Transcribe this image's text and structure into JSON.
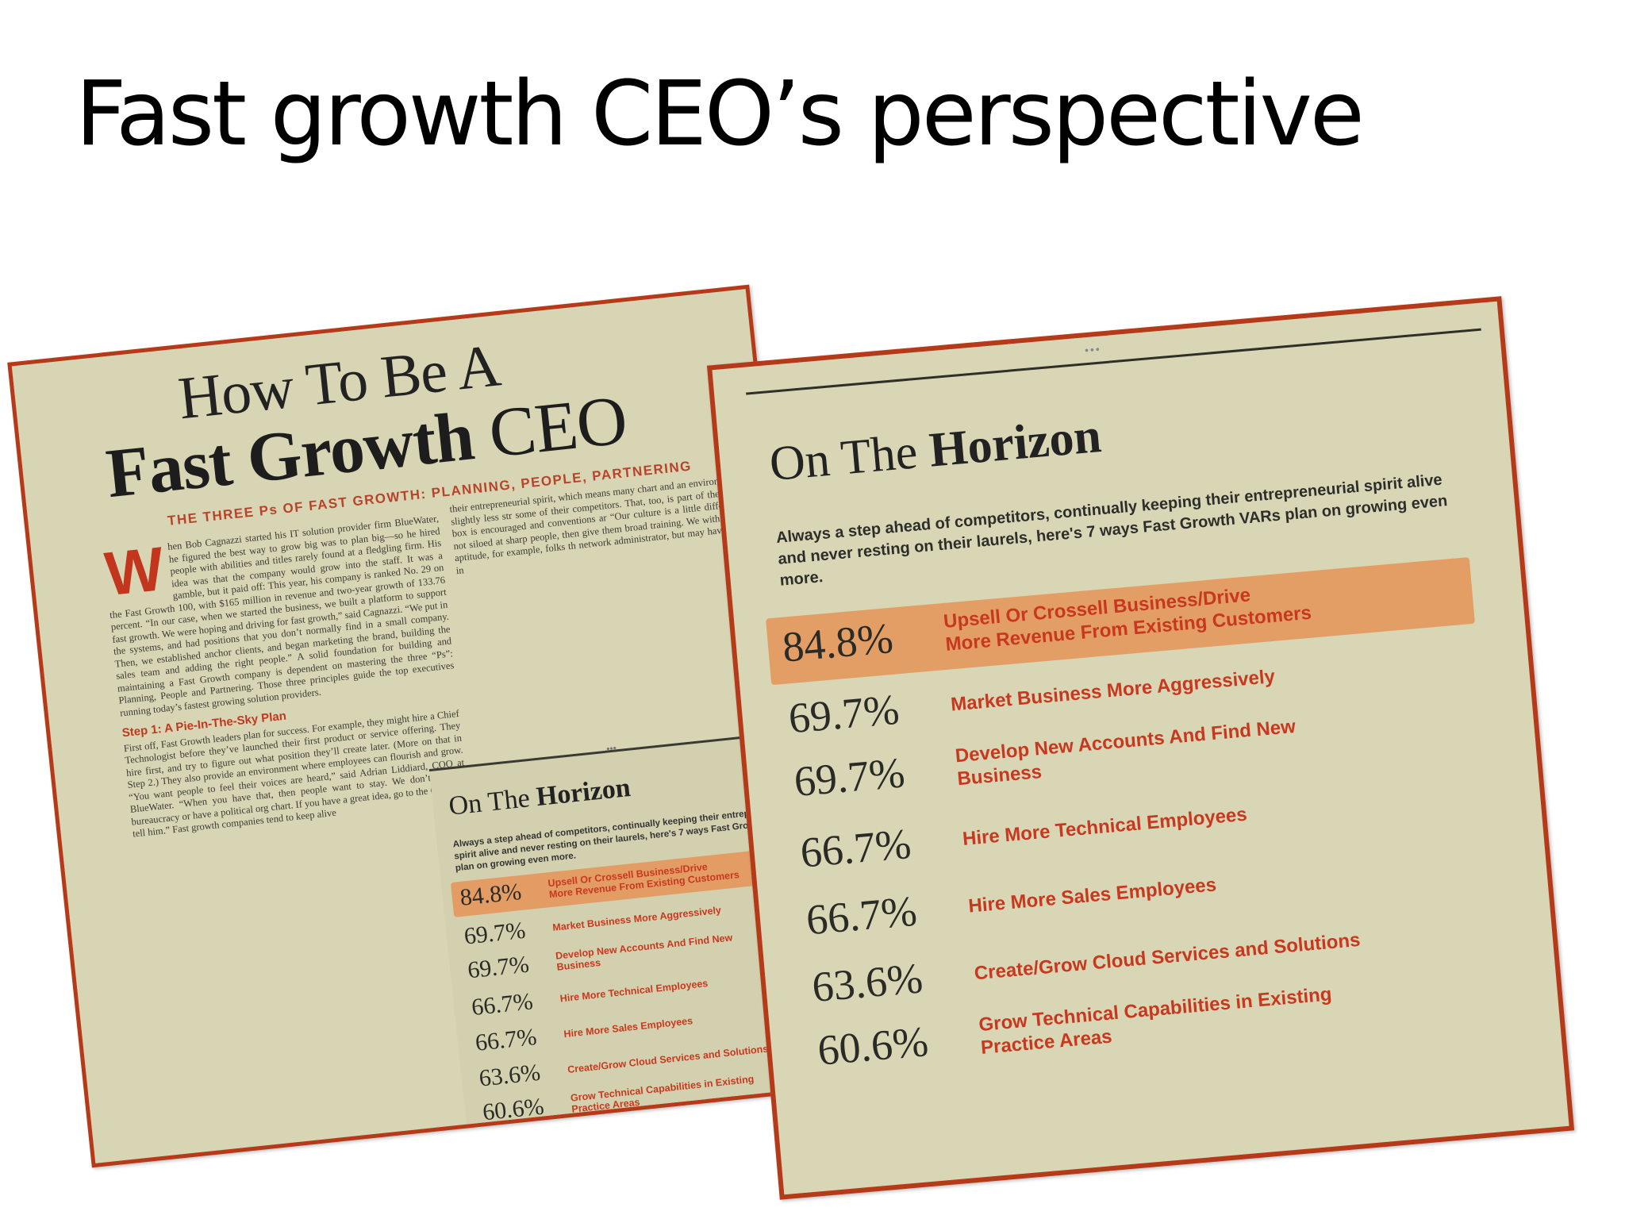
{
  "slide": {
    "title": "Fast growth CEO’s perspective"
  },
  "left_clipping": {
    "title_line1": "How To Be A",
    "title_line2_bold": "Fast Growth",
    "title_line2_regular": "CEO",
    "subtitle": "THE THREE Ps OF FAST GROWTH: PLANNING, PEOPLE, PARTNERING",
    "dropcap": "W",
    "col_a_text": "hen Bob Cagnazzi started his IT solution provider firm BlueWater, he figured the best way to grow big was to plan big—so he hired people with abilities and titles rarely found at a fledgling firm. His idea was that the company would grow into the staff. It was a gamble, but it paid off: This year, his company is ranked No. 29 on the Fast Growth 100, with $165 million in revenue and two-year growth of 133.76 percent. “In our case, when we started the business, we built a platform to support fast growth. We were hoping and driving for fast growth,” said Cagnazzi. “We put in the systems, and had positions that you don’t normally find in a small company. Then, we established anchor clients, and began marketing the brand, building the sales team and adding the right people.” A solid foundation for building and maintaining a Fast Growth company is dependent on mastering the three “Ps”: Planning, People and Partnering. Those three principles guide the top executives running today’s fastest growing solution providers.",
    "step_heading": "Step 1: A Pie-In-The-Sky Plan",
    "step_text": "First off, Fast Growth leaders plan for success. For example, they might hire a Chief Technologist before they’ve launched their first product or service offering. They hire first, and try to figure out what position they’ll create later. (More on that in Step 2.) They also provide an environment where employees can flourish and grow. “You want people to feel their voices are heard,” said Adrian Liddiard, COO at BlueWater. “When you have that, then people want to stay. We don’t tolerate bureaucracy or have a political org chart. If you have a great idea, go to the CEO and tell him.” Fast growth companies tend to keep alive",
    "col_b_text": "their entrepreneurial spirit, which means many chart and an environment that is slightly less str some of their competitors. That, too, is part of the outside the box is encouraged and conventions ar “Our culture is a little different. We’re not siloed at sharp people, then give them broad training. We with interest and aptitude, for example, folks th network administrator, but may have an interest in",
    "inset": {
      "dots": "•••",
      "title_regular": "On The",
      "title_bold": "Horizon",
      "intro": "Always a step ahead of competitors, continually keeping their entrepreneurial spirit alive and never resting on their laurels, here's 7 ways Fast Growth VARs plan on growing even more."
    }
  },
  "right_clipping": {
    "dots": "•••",
    "title_regular": "On The",
    "title_bold": "Horizon",
    "intro": "Always a step ahead of competitors, continually keeping their entrepreneurial spirit alive and never resting on their laurels, here's 7 ways Fast Growth VARs plan on growing even more."
  },
  "horizon_stats": [
    {
      "value": "84.8%",
      "label_line1": "Upsell Or Crossell Business/Drive",
      "label_line2": "More Revenue From Existing Customers",
      "highlighted": true
    },
    {
      "value": "69.7%",
      "label_line1": "Market Business More Aggressively",
      "label_line2": ""
    },
    {
      "value": "69.7%",
      "label_line1": "Develop New Accounts And Find New",
      "label_line2": "Business"
    },
    {
      "value": "66.7%",
      "label_line1": "Hire More Technical Employees",
      "label_line2": ""
    },
    {
      "value": "66.7%",
      "label_line1": "Hire More Sales Employees",
      "label_line2": ""
    },
    {
      "value": "63.6%",
      "label_line1": "Create/Grow Cloud Services and Solutions",
      "label_line2": ""
    },
    {
      "value": "60.6%",
      "label_line1": "Grow Technical Capabilities in Existing",
      "label_line2": "Practice Areas"
    }
  ],
  "colors": {
    "clipping_border": "#b53a1a",
    "paper": "#d7d5b4",
    "stat_label": "#c8381e",
    "highlight": "#e88848"
  }
}
